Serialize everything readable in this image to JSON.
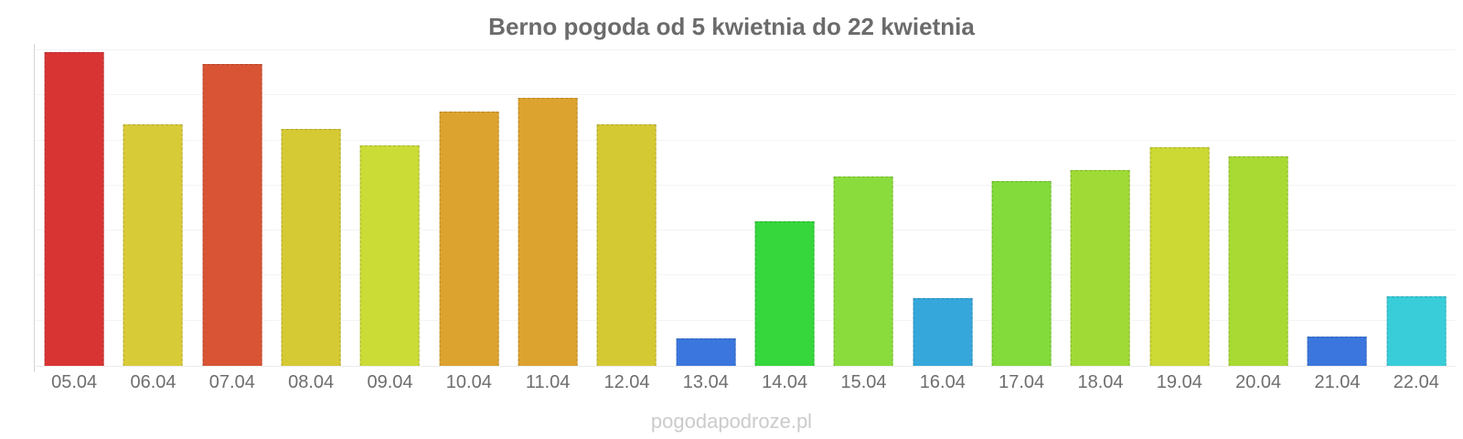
{
  "page": {
    "title": "Berno pogoda od 5 kwietnia do 22 kwietnia",
    "watermark": "pogodapodroze.pl",
    "background_color": "#ffffff",
    "title_color": "#6b6b6b",
    "axis_label_color": "#6e6e6e",
    "tick_label_color": "#8a8a8a",
    "watermark_color": "#cbcbcb"
  },
  "chart_data": {
    "type": "bar",
    "title": "Berno pogoda od 5 kwietnia do 22 kwietnia",
    "xlabel": "",
    "ylabel": "",
    "legend": "none",
    "grid": "horizontal-light",
    "ylim": [
      8,
      22
    ],
    "yticks": [
      8,
      10,
      12,
      14,
      16,
      18,
      20,
      22
    ],
    "categories": [
      "05.04",
      "06.04",
      "07.04",
      "08.04",
      "09.04",
      "10.04",
      "11.04",
      "12.04",
      "13.04",
      "14.04",
      "15.04",
      "16.04",
      "17.04",
      "18.04",
      "19.04",
      "20.04",
      "21.04",
      "22.04"
    ],
    "values": [
      21.9,
      18.7,
      21.4,
      18.5,
      17.8,
      19.3,
      19.9,
      18.7,
      9.2,
      14.4,
      16.4,
      11.0,
      16.2,
      16.7,
      17.7,
      17.3,
      9.3,
      11.1
    ],
    "bar_colors": [
      "#d93434",
      "#d8cb38",
      "#d85434",
      "#d5c934",
      "#cbdc37",
      "#dda32f",
      "#dda32f",
      "#d5c933",
      "#3a76dd",
      "#35d73c",
      "#8adc3c",
      "#35a7db",
      "#82da3b",
      "#a0da36",
      "#ccd834",
      "#a8da33",
      "#3a76dd",
      "#38cdd9"
    ]
  }
}
